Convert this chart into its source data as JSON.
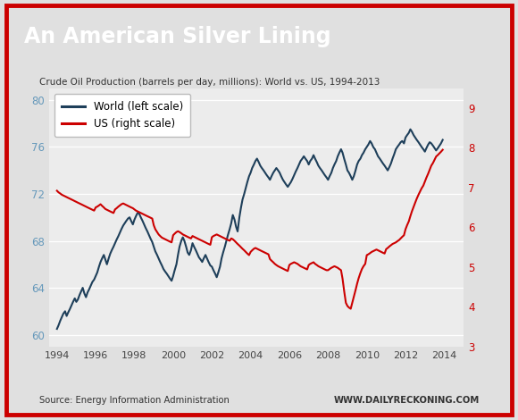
{
  "title": "An American Silver Lining",
  "subtitle": "Crude Oil Production (barrels per day, millions): World vs. US, 1994-2013",
  "source_left": "Source: Energy Information Administration",
  "source_right": "WWW.DAILYRECKONING.COM",
  "title_bg": "#1a1a1a",
  "title_color": "#ffffff",
  "plot_bg": "#ececec",
  "outer_bg": "#e0e0e0",
  "border_color": "#cc0000",
  "left_axis_color": "#6699bb",
  "right_axis_color": "#cc0000",
  "world_color": "#1e3f5a",
  "us_color": "#cc0000",
  "ylim_left": [
    59,
    81
  ],
  "ylim_right": [
    3,
    9.5
  ],
  "yticks_left": [
    60,
    64,
    68,
    72,
    76,
    80
  ],
  "yticks_right": [
    3,
    4,
    5,
    6,
    7,
    8,
    9
  ],
  "xlim": [
    1993.6,
    2015.0
  ],
  "xticks": [
    1994,
    1996,
    1998,
    2000,
    2002,
    2004,
    2006,
    2008,
    2010,
    2012,
    2014
  ],
  "world_years": [
    1994.0,
    1994.08,
    1994.17,
    1994.25,
    1994.33,
    1994.42,
    1994.5,
    1994.58,
    1994.67,
    1994.75,
    1994.83,
    1994.92,
    1995.0,
    1995.08,
    1995.17,
    1995.25,
    1995.33,
    1995.42,
    1995.5,
    1995.58,
    1995.67,
    1995.75,
    1995.83,
    1995.92,
    1996.0,
    1996.08,
    1996.17,
    1996.25,
    1996.33,
    1996.42,
    1996.5,
    1996.58,
    1996.67,
    1996.75,
    1996.83,
    1996.92,
    1997.0,
    1997.08,
    1997.17,
    1997.25,
    1997.33,
    1997.42,
    1997.5,
    1997.58,
    1997.67,
    1997.75,
    1997.83,
    1997.92,
    1998.0,
    1998.08,
    1998.17,
    1998.25,
    1998.33,
    1998.42,
    1998.5,
    1998.58,
    1998.67,
    1998.75,
    1998.83,
    1998.92,
    1999.0,
    1999.08,
    1999.17,
    1999.25,
    1999.33,
    1999.42,
    1999.5,
    1999.58,
    1999.67,
    1999.75,
    1999.83,
    1999.92,
    2000.0,
    2000.08,
    2000.17,
    2000.25,
    2000.33,
    2000.42,
    2000.5,
    2000.58,
    2000.67,
    2000.75,
    2000.83,
    2000.92,
    2001.0,
    2001.08,
    2001.17,
    2001.25,
    2001.33,
    2001.42,
    2001.5,
    2001.58,
    2001.67,
    2001.75,
    2001.83,
    2001.92,
    2002.0,
    2002.08,
    2002.17,
    2002.25,
    2002.33,
    2002.42,
    2002.5,
    2002.58,
    2002.67,
    2002.75,
    2002.83,
    2002.92,
    2003.0,
    2003.08,
    2003.17,
    2003.25,
    2003.33,
    2003.42,
    2003.5,
    2003.58,
    2003.67,
    2003.75,
    2003.83,
    2003.92,
    2004.0,
    2004.08,
    2004.17,
    2004.25,
    2004.33,
    2004.42,
    2004.5,
    2004.58,
    2004.67,
    2004.75,
    2004.83,
    2004.92,
    2005.0,
    2005.08,
    2005.17,
    2005.25,
    2005.33,
    2005.42,
    2005.5,
    2005.58,
    2005.67,
    2005.75,
    2005.83,
    2005.92,
    2006.0,
    2006.08,
    2006.17,
    2006.25,
    2006.33,
    2006.42,
    2006.5,
    2006.58,
    2006.67,
    2006.75,
    2006.83,
    2006.92,
    2007.0,
    2007.08,
    2007.17,
    2007.25,
    2007.33,
    2007.42,
    2007.5,
    2007.58,
    2007.67,
    2007.75,
    2007.83,
    2007.92,
    2008.0,
    2008.08,
    2008.17,
    2008.25,
    2008.33,
    2008.42,
    2008.5,
    2008.58,
    2008.67,
    2008.75,
    2008.83,
    2008.92,
    2009.0,
    2009.08,
    2009.17,
    2009.25,
    2009.33,
    2009.42,
    2009.5,
    2009.58,
    2009.67,
    2009.75,
    2009.83,
    2009.92,
    2010.0,
    2010.08,
    2010.17,
    2010.25,
    2010.33,
    2010.42,
    2010.5,
    2010.58,
    2010.67,
    2010.75,
    2010.83,
    2010.92,
    2011.0,
    2011.08,
    2011.17,
    2011.25,
    2011.33,
    2011.42,
    2011.5,
    2011.58,
    2011.67,
    2011.75,
    2011.83,
    2011.92,
    2012.0,
    2012.08,
    2012.17,
    2012.25,
    2012.33,
    2012.42,
    2012.5,
    2012.58,
    2012.67,
    2012.75,
    2012.83,
    2012.92,
    2013.0,
    2013.08,
    2013.17,
    2013.25,
    2013.33,
    2013.42,
    2013.5,
    2013.58,
    2013.67,
    2013.75,
    2013.83,
    2013.92
  ],
  "world_vals": [
    60.5,
    60.8,
    61.2,
    61.5,
    61.8,
    62.0,
    61.6,
    61.9,
    62.2,
    62.5,
    62.8,
    63.1,
    62.8,
    63.0,
    63.4,
    63.7,
    64.0,
    63.5,
    63.2,
    63.6,
    63.9,
    64.2,
    64.5,
    64.7,
    65.0,
    65.3,
    65.8,
    66.2,
    66.5,
    66.8,
    66.4,
    66.0,
    66.5,
    66.9,
    67.2,
    67.5,
    67.8,
    68.1,
    68.4,
    68.7,
    69.0,
    69.3,
    69.5,
    69.7,
    69.9,
    70.0,
    69.7,
    69.4,
    69.8,
    70.1,
    70.4,
    70.3,
    70.0,
    69.7,
    69.4,
    69.1,
    68.8,
    68.5,
    68.2,
    67.9,
    67.5,
    67.1,
    66.8,
    66.5,
    66.2,
    65.9,
    65.6,
    65.4,
    65.2,
    65.0,
    64.8,
    64.6,
    65.0,
    65.5,
    66.0,
    66.8,
    67.5,
    68.0,
    68.3,
    68.0,
    67.5,
    67.0,
    66.8,
    67.2,
    67.8,
    67.5,
    67.2,
    66.9,
    66.6,
    66.4,
    66.2,
    66.5,
    66.8,
    66.5,
    66.2,
    65.9,
    65.8,
    65.5,
    65.2,
    64.9,
    65.3,
    65.8,
    66.5,
    67.0,
    67.5,
    68.0,
    68.5,
    69.0,
    69.5,
    70.2,
    69.8,
    69.2,
    68.8,
    70.0,
    70.8,
    71.5,
    72.0,
    72.5,
    73.0,
    73.5,
    73.8,
    74.2,
    74.5,
    74.8,
    75.0,
    74.7,
    74.4,
    74.2,
    74.0,
    73.8,
    73.6,
    73.4,
    73.2,
    73.5,
    73.8,
    74.0,
    74.2,
    74.0,
    73.8,
    73.5,
    73.2,
    73.0,
    72.8,
    72.6,
    72.8,
    73.0,
    73.3,
    73.6,
    73.9,
    74.2,
    74.5,
    74.8,
    75.0,
    75.2,
    75.0,
    74.8,
    74.5,
    74.8,
    75.0,
    75.3,
    75.0,
    74.7,
    74.4,
    74.2,
    74.0,
    73.8,
    73.6,
    73.4,
    73.2,
    73.5,
    73.8,
    74.2,
    74.5,
    74.8,
    75.2,
    75.5,
    75.8,
    75.5,
    75.0,
    74.5,
    74.0,
    73.8,
    73.5,
    73.2,
    73.5,
    74.0,
    74.5,
    74.8,
    75.0,
    75.3,
    75.5,
    75.8,
    76.0,
    76.2,
    76.5,
    76.3,
    76.0,
    75.8,
    75.5,
    75.2,
    75.0,
    74.8,
    74.6,
    74.4,
    74.2,
    74.0,
    74.3,
    74.6,
    75.0,
    75.4,
    75.8,
    76.0,
    76.2,
    76.4,
    76.5,
    76.3,
    76.8,
    77.0,
    77.2,
    77.5,
    77.3,
    77.0,
    76.8,
    76.6,
    76.4,
    76.2,
    76.0,
    75.8,
    75.6,
    75.9,
    76.2,
    76.4,
    76.3,
    76.1,
    75.9,
    75.7,
    75.9,
    76.1,
    76.3,
    76.6
  ],
  "us_years": [
    1994.0,
    1994.08,
    1994.17,
    1994.25,
    1994.33,
    1994.42,
    1994.5,
    1994.58,
    1994.67,
    1994.75,
    1994.83,
    1994.92,
    1995.0,
    1995.08,
    1995.17,
    1995.25,
    1995.33,
    1995.42,
    1995.5,
    1995.58,
    1995.67,
    1995.75,
    1995.83,
    1995.92,
    1996.0,
    1996.08,
    1996.17,
    1996.25,
    1996.33,
    1996.42,
    1996.5,
    1996.58,
    1996.67,
    1996.75,
    1996.83,
    1996.92,
    1997.0,
    1997.08,
    1997.17,
    1997.25,
    1997.33,
    1997.42,
    1997.5,
    1997.58,
    1997.67,
    1997.75,
    1997.83,
    1997.92,
    1998.0,
    1998.08,
    1998.17,
    1998.25,
    1998.33,
    1998.42,
    1998.5,
    1998.58,
    1998.67,
    1998.75,
    1998.83,
    1998.92,
    1999.0,
    1999.08,
    1999.17,
    1999.25,
    1999.33,
    1999.42,
    1999.5,
    1999.58,
    1999.67,
    1999.75,
    1999.83,
    1999.92,
    2000.0,
    2000.08,
    2000.17,
    2000.25,
    2000.33,
    2000.42,
    2000.5,
    2000.58,
    2000.67,
    2000.75,
    2000.83,
    2000.92,
    2001.0,
    2001.08,
    2001.17,
    2001.25,
    2001.33,
    2001.42,
    2001.5,
    2001.58,
    2001.67,
    2001.75,
    2001.83,
    2001.92,
    2002.0,
    2002.08,
    2002.17,
    2002.25,
    2002.33,
    2002.42,
    2002.5,
    2002.58,
    2002.67,
    2002.75,
    2002.83,
    2002.92,
    2003.0,
    2003.08,
    2003.17,
    2003.25,
    2003.33,
    2003.42,
    2003.5,
    2003.58,
    2003.67,
    2003.75,
    2003.83,
    2003.92,
    2004.0,
    2004.08,
    2004.17,
    2004.25,
    2004.33,
    2004.42,
    2004.5,
    2004.58,
    2004.67,
    2004.75,
    2004.83,
    2004.92,
    2005.0,
    2005.08,
    2005.17,
    2005.25,
    2005.33,
    2005.42,
    2005.5,
    2005.58,
    2005.67,
    2005.75,
    2005.83,
    2005.92,
    2006.0,
    2006.08,
    2006.17,
    2006.25,
    2006.33,
    2006.42,
    2006.5,
    2006.58,
    2006.67,
    2006.75,
    2006.83,
    2006.92,
    2007.0,
    2007.08,
    2007.17,
    2007.25,
    2007.33,
    2007.42,
    2007.5,
    2007.58,
    2007.67,
    2007.75,
    2007.83,
    2007.92,
    2008.0,
    2008.08,
    2008.17,
    2008.25,
    2008.33,
    2008.42,
    2008.5,
    2008.58,
    2008.67,
    2008.75,
    2008.83,
    2008.92,
    2009.0,
    2009.08,
    2009.17,
    2009.25,
    2009.33,
    2009.42,
    2009.5,
    2009.58,
    2009.67,
    2009.75,
    2009.83,
    2009.92,
    2010.0,
    2010.08,
    2010.17,
    2010.25,
    2010.33,
    2010.42,
    2010.5,
    2010.58,
    2010.67,
    2010.75,
    2010.83,
    2010.92,
    2011.0,
    2011.08,
    2011.17,
    2011.25,
    2011.33,
    2011.42,
    2011.5,
    2011.58,
    2011.67,
    2011.75,
    2011.83,
    2011.92,
    2012.0,
    2012.08,
    2012.17,
    2012.25,
    2012.33,
    2012.42,
    2012.5,
    2012.58,
    2012.67,
    2012.75,
    2012.83,
    2012.92,
    2013.0,
    2013.08,
    2013.17,
    2013.25,
    2013.33,
    2013.42,
    2013.5,
    2013.58,
    2013.67,
    2013.75,
    2013.83,
    2013.92
  ],
  "us_vals": [
    6.92,
    6.88,
    6.85,
    6.82,
    6.8,
    6.78,
    6.76,
    6.74,
    6.72,
    6.7,
    6.68,
    6.66,
    6.64,
    6.62,
    6.6,
    6.58,
    6.56,
    6.54,
    6.52,
    6.5,
    6.48,
    6.46,
    6.44,
    6.42,
    6.5,
    6.52,
    6.55,
    6.58,
    6.54,
    6.5,
    6.46,
    6.44,
    6.42,
    6.4,
    6.38,
    6.36,
    6.45,
    6.48,
    6.52,
    6.55,
    6.58,
    6.6,
    6.58,
    6.56,
    6.54,
    6.52,
    6.5,
    6.48,
    6.45,
    6.42,
    6.4,
    6.38,
    6.36,
    6.34,
    6.32,
    6.3,
    6.28,
    6.26,
    6.24,
    6.22,
    6.05,
    5.95,
    5.88,
    5.82,
    5.78,
    5.74,
    5.72,
    5.7,
    5.68,
    5.66,
    5.64,
    5.62,
    5.8,
    5.84,
    5.88,
    5.9,
    5.88,
    5.85,
    5.82,
    5.8,
    5.78,
    5.76,
    5.74,
    5.72,
    5.78,
    5.76,
    5.74,
    5.72,
    5.7,
    5.68,
    5.66,
    5.64,
    5.62,
    5.6,
    5.58,
    5.56,
    5.75,
    5.78,
    5.8,
    5.82,
    5.8,
    5.78,
    5.76,
    5.74,
    5.72,
    5.7,
    5.68,
    5.66,
    5.72,
    5.7,
    5.66,
    5.62,
    5.58,
    5.54,
    5.5,
    5.46,
    5.42,
    5.38,
    5.34,
    5.3,
    5.38,
    5.42,
    5.46,
    5.48,
    5.46,
    5.44,
    5.42,
    5.4,
    5.38,
    5.36,
    5.34,
    5.32,
    5.2,
    5.16,
    5.12,
    5.08,
    5.05,
    5.02,
    5.0,
    4.98,
    4.96,
    4.94,
    4.92,
    4.9,
    5.05,
    5.08,
    5.1,
    5.12,
    5.1,
    5.08,
    5.05,
    5.02,
    5.0,
    4.98,
    4.96,
    4.94,
    5.05,
    5.08,
    5.1,
    5.12,
    5.08,
    5.05,
    5.02,
    5.0,
    4.98,
    4.96,
    4.94,
    4.92,
    4.92,
    4.95,
    4.98,
    5.0,
    5.02,
    5.0,
    4.98,
    4.95,
    4.92,
    4.7,
    4.4,
    4.1,
    4.02,
    3.98,
    3.95,
    4.1,
    4.25,
    4.42,
    4.58,
    4.72,
    4.85,
    4.95,
    5.02,
    5.08,
    5.3,
    5.32,
    5.35,
    5.38,
    5.4,
    5.42,
    5.44,
    5.42,
    5.4,
    5.38,
    5.36,
    5.34,
    5.45,
    5.48,
    5.52,
    5.55,
    5.58,
    5.6,
    5.62,
    5.65,
    5.68,
    5.72,
    5.76,
    5.8,
    5.95,
    6.05,
    6.15,
    6.28,
    6.4,
    6.52,
    6.62,
    6.72,
    6.82,
    6.9,
    6.98,
    7.05,
    7.15,
    7.25,
    7.35,
    7.45,
    7.55,
    7.62,
    7.7,
    7.78,
    7.82,
    7.86,
    7.9,
    7.95
  ]
}
